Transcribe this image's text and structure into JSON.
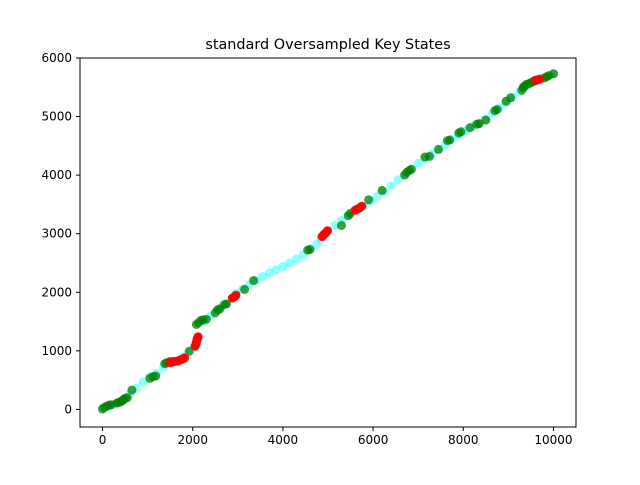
{
  "chart_data": {
    "type": "scatter",
    "title": "standard Oversampled Key States",
    "xlabel": "",
    "ylabel": "",
    "xlim": [
      -500,
      10500
    ],
    "ylim": [
      -300,
      6000
    ],
    "x_ticks": [
      0,
      2000,
      4000,
      6000,
      8000,
      10000
    ],
    "x_tick_labels": [
      "0",
      "2000",
      "4000",
      "6000",
      "8000",
      "10000"
    ],
    "y_ticks": [
      0,
      1000,
      2000,
      3000,
      4000,
      5000,
      6000
    ],
    "y_tick_labels": [
      "0",
      "1000",
      "2000",
      "3000",
      "4000",
      "5000",
      "6000"
    ],
    "grid": false,
    "series": [
      {
        "color": "#00ffff",
        "alpha": 0.45,
        "points": [
          [
            0,
            0
          ],
          [
            150,
            50
          ],
          [
            300,
            100
          ],
          [
            450,
            160
          ],
          [
            600,
            260
          ],
          [
            750,
            360
          ],
          [
            900,
            470
          ],
          [
            1050,
            560
          ],
          [
            1200,
            620
          ],
          [
            1350,
            720
          ],
          [
            1500,
            780
          ],
          [
            1650,
            820
          ],
          [
            1800,
            900
          ],
          [
            1950,
            1010
          ],
          [
            2050,
            1060
          ],
          [
            2250,
            1500
          ],
          [
            2400,
            1600
          ],
          [
            2600,
            1700
          ],
          [
            2750,
            1800
          ],
          [
            2950,
            1980
          ],
          [
            3100,
            2050
          ],
          [
            3250,
            2130
          ],
          [
            3400,
            2200
          ],
          [
            3550,
            2270
          ],
          [
            3700,
            2330
          ],
          [
            3850,
            2380
          ],
          [
            4000,
            2440
          ],
          [
            4150,
            2500
          ],
          [
            4300,
            2570
          ],
          [
            4450,
            2640
          ],
          [
            4600,
            2740
          ],
          [
            4750,
            2820
          ],
          [
            4850,
            2910
          ],
          [
            5000,
            3050
          ],
          [
            5150,
            3140
          ],
          [
            5300,
            3230
          ],
          [
            5450,
            3310
          ],
          [
            5800,
            3470
          ],
          [
            5950,
            3560
          ],
          [
            6100,
            3640
          ],
          [
            6250,
            3720
          ],
          [
            6400,
            3820
          ],
          [
            6550,
            3920
          ],
          [
            6700,
            4010
          ],
          [
            6850,
            4100
          ],
          [
            7000,
            4200
          ],
          [
            7150,
            4280
          ],
          [
            7300,
            4360
          ],
          [
            7450,
            4440
          ],
          [
            7600,
            4520
          ],
          [
            7750,
            4610
          ],
          [
            7900,
            4690
          ],
          [
            8050,
            4760
          ],
          [
            8200,
            4830
          ],
          [
            8350,
            4880
          ],
          [
            8500,
            4960
          ],
          [
            8650,
            5060
          ],
          [
            8800,
            5150
          ],
          [
            8950,
            5240
          ],
          [
            9100,
            5330
          ],
          [
            9250,
            5420
          ],
          [
            9400,
            5520
          ],
          [
            9550,
            5580
          ],
          [
            9700,
            5630
          ],
          [
            9850,
            5680
          ],
          [
            10000,
            5730
          ]
        ]
      },
      {
        "color": "#008000",
        "alpha": 0.75,
        "points": [
          [
            0,
            10
          ],
          [
            50,
            40
          ],
          [
            100,
            60
          ],
          [
            150,
            75
          ],
          [
            200,
            80
          ],
          [
            320,
            110
          ],
          [
            360,
            120
          ],
          [
            400,
            130
          ],
          [
            440,
            150
          ],
          [
            470,
            170
          ],
          [
            500,
            190
          ],
          [
            550,
            200
          ],
          [
            650,
            330
          ],
          [
            1050,
            530
          ],
          [
            1120,
            560
          ],
          [
            1180,
            570
          ],
          [
            1380,
            780
          ],
          [
            1420,
            800
          ],
          [
            1500,
            820
          ],
          [
            1920,
            990
          ],
          [
            2080,
            1450
          ],
          [
            2130,
            1480
          ],
          [
            2180,
            1520
          ],
          [
            2230,
            1530
          ],
          [
            2300,
            1540
          ],
          [
            2500,
            1650
          ],
          [
            2550,
            1700
          ],
          [
            2600,
            1720
          ],
          [
            2700,
            1790
          ],
          [
            2750,
            1800
          ],
          [
            3150,
            2050
          ],
          [
            3350,
            2200
          ],
          [
            4550,
            2720
          ],
          [
            4600,
            2730
          ],
          [
            5300,
            3140
          ],
          [
            5450,
            3310
          ],
          [
            5500,
            3350
          ],
          [
            5900,
            3580
          ],
          [
            6200,
            3740
          ],
          [
            6700,
            4000
          ],
          [
            6750,
            4050
          ],
          [
            6800,
            4080
          ],
          [
            6850,
            4100
          ],
          [
            7150,
            4310
          ],
          [
            7250,
            4320
          ],
          [
            7450,
            4440
          ],
          [
            7650,
            4590
          ],
          [
            7700,
            4600
          ],
          [
            7900,
            4720
          ],
          [
            7950,
            4740
          ],
          [
            8150,
            4810
          ],
          [
            8300,
            4870
          ],
          [
            8350,
            4880
          ],
          [
            8500,
            4940
          ],
          [
            8700,
            5100
          ],
          [
            8750,
            5120
          ],
          [
            8950,
            5260
          ],
          [
            9050,
            5320
          ],
          [
            9300,
            5450
          ],
          [
            9330,
            5500
          ],
          [
            9360,
            5520
          ],
          [
            9400,
            5550
          ],
          [
            9450,
            5560
          ],
          [
            9500,
            5580
          ],
          [
            9550,
            5600
          ],
          [
            9600,
            5610
          ],
          [
            9800,
            5660
          ],
          [
            9850,
            5680
          ],
          [
            9900,
            5700
          ],
          [
            10000,
            5730
          ]
        ]
      },
      {
        "color": "#ff0000",
        "alpha": 0.95,
        "points": [
          [
            1500,
            800
          ],
          [
            1560,
            810
          ],
          [
            1600,
            820
          ],
          [
            1680,
            830
          ],
          [
            1740,
            850
          ],
          [
            1780,
            860
          ],
          [
            1820,
            880
          ],
          [
            2050,
            1080
          ],
          [
            2070,
            1110
          ],
          [
            2080,
            1140
          ],
          [
            2090,
            1170
          ],
          [
            2100,
            1200
          ],
          [
            2110,
            1220
          ],
          [
            2120,
            1240
          ],
          [
            2880,
            1900
          ],
          [
            2920,
            1920
          ],
          [
            2960,
            1950
          ],
          [
            4870,
            2950
          ],
          [
            4900,
            2980
          ],
          [
            4930,
            3000
          ],
          [
            4960,
            3020
          ],
          [
            4990,
            3050
          ],
          [
            5600,
            3400
          ],
          [
            5650,
            3420
          ],
          [
            5700,
            3440
          ],
          [
            5750,
            3470
          ],
          [
            9600,
            5620
          ],
          [
            9650,
            5630
          ],
          [
            9700,
            5640
          ]
        ]
      }
    ]
  }
}
